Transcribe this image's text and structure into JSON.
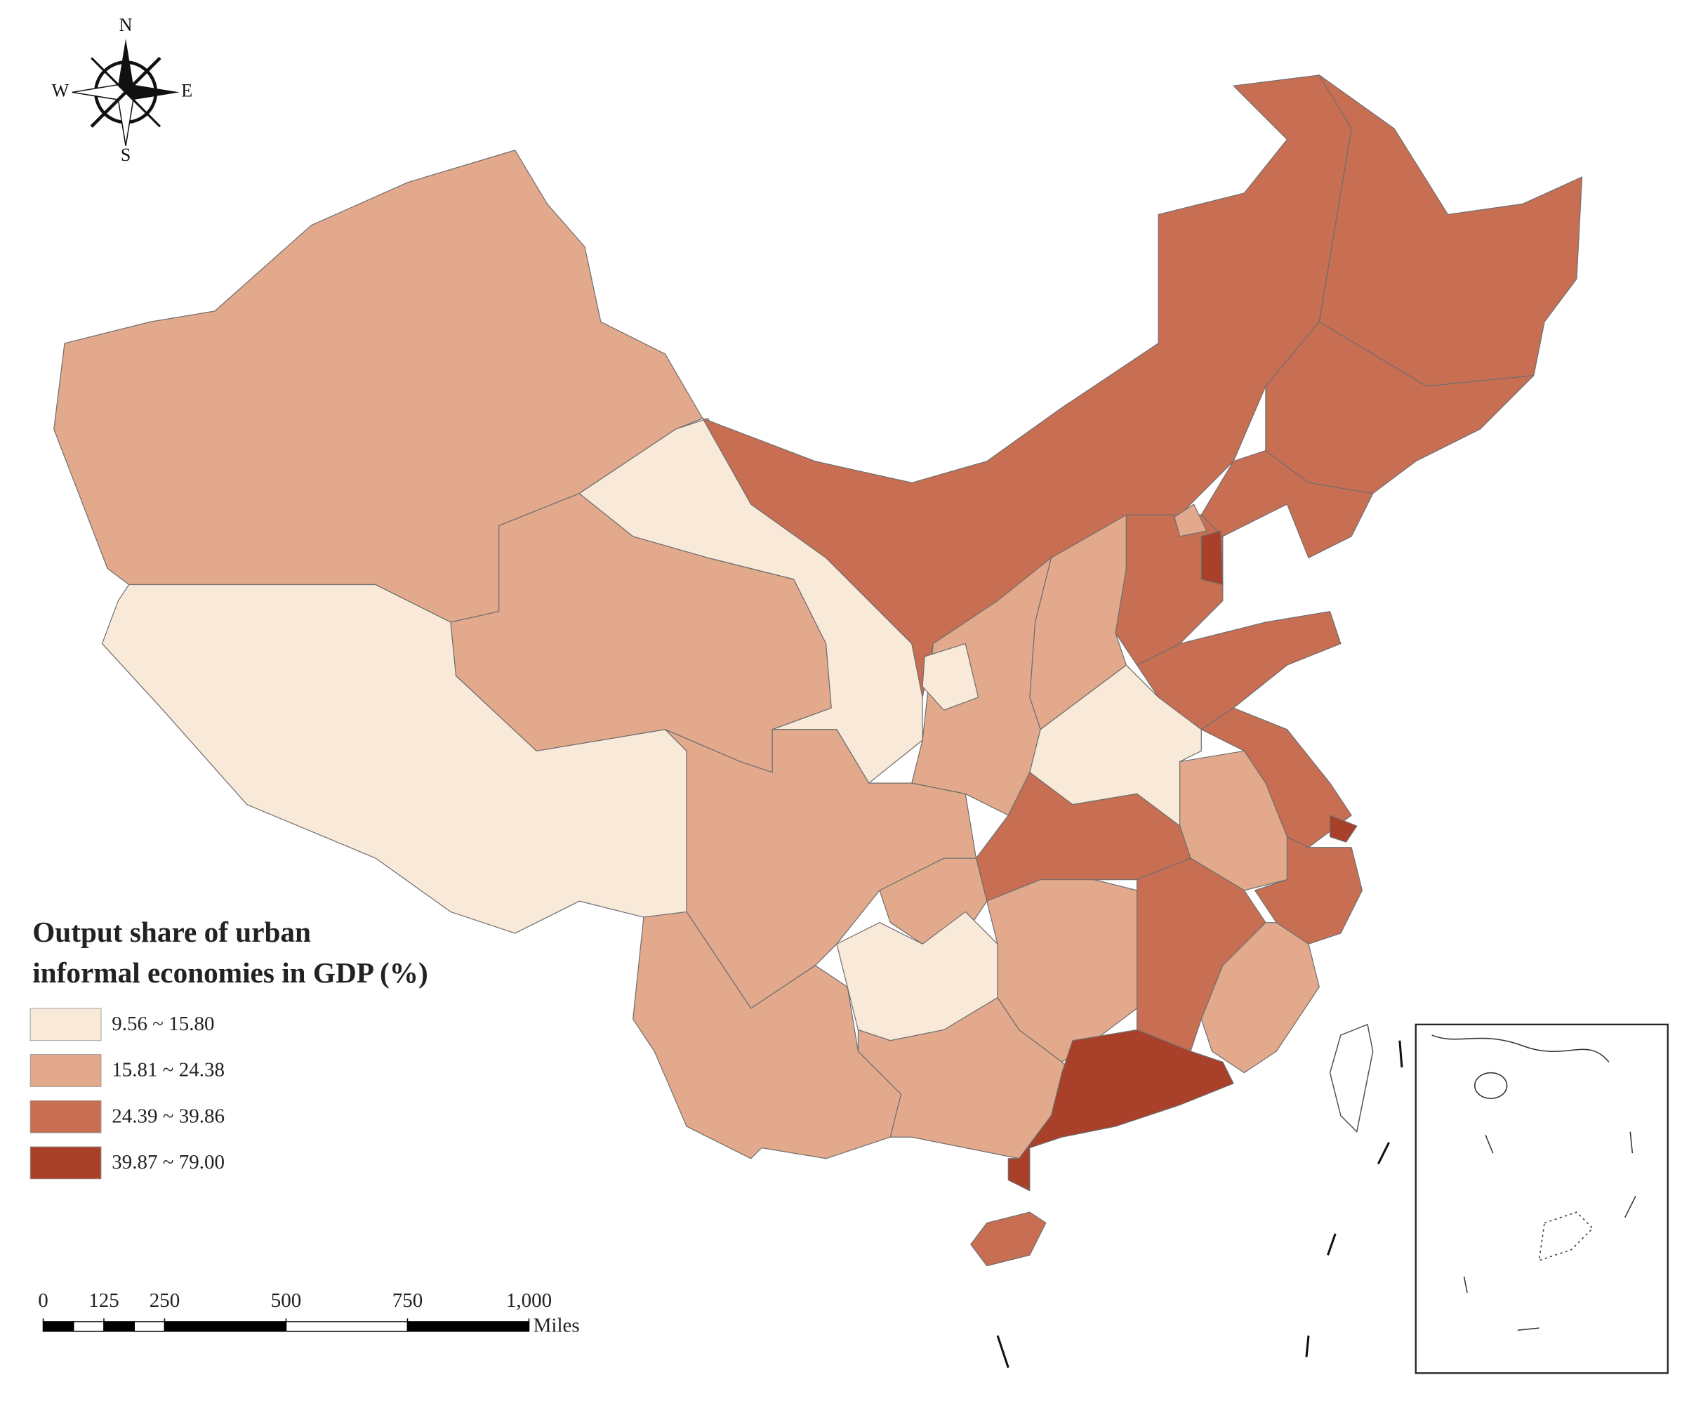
{
  "compass": {
    "north": "N",
    "south": "S",
    "west": "W",
    "east": "E"
  },
  "legend": {
    "title": [
      "Output share of urban",
      "informal economies in GDP (%)"
    ],
    "classes": [
      {
        "label": "9.56 ~ 15.80",
        "color": "#f9e9d9"
      },
      {
        "label": "15.81 ~ 24.38",
        "color": "#e3a98c"
      },
      {
        "label": "24.39 ~ 39.86",
        "color": "#c86e52"
      },
      {
        "label": "39.87 ~ 79.00",
        "color": "#a8402a"
      }
    ]
  },
  "scale_bar": {
    "ticks": [
      0,
      125,
      250,
      500,
      750,
      {
        "value": 1000,
        "label": "1,000"
      }
    ],
    "unit": "Miles"
  }
}
